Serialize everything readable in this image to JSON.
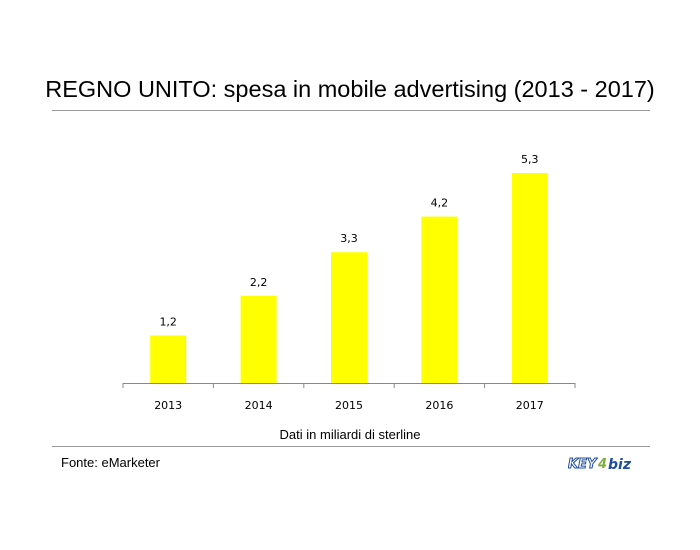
{
  "chart_data": {
    "type": "bar",
    "title": "REGNO UNITO: spesa in mobile advertising (2013 - 2017)",
    "categories": [
      "2013",
      "2014",
      "2015",
      "2016",
      "2017"
    ],
    "values": [
      1.2,
      2.2,
      3.3,
      4.2,
      5.3
    ],
    "value_labels": [
      "1,2",
      "2,2",
      "3,3",
      "4,2",
      "5,3"
    ],
    "xlabel": "Dati in miliardi di sterline",
    "ylabel": "",
    "ylim": [
      0,
      6
    ],
    "grid": false,
    "bar_color": "#FFFF00"
  },
  "footer": {
    "source": "Fonte: eMarketer",
    "logo_text": "KEY4biz"
  },
  "colors": {
    "logo_blue": "#1f4e9c",
    "logo_green": "#7fb03a"
  }
}
